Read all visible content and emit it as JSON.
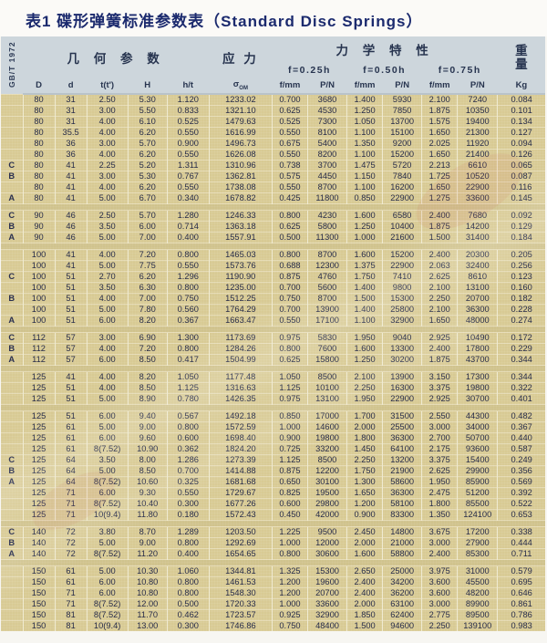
{
  "title": "表1 碟形弹簧标准参数表（Standard Disc Springs）",
  "table": {
    "standard_label": "GB/T 1972",
    "header": {
      "geometry": "几 何 参 数",
      "stress": "应 力",
      "mechanics": "力 学 特 性",
      "weight_char1": "重",
      "weight_char2": "量",
      "weight_unit": "Kg",
      "deflections": [
        "f=0.25h",
        "f=0.50h",
        "f=0.75h"
      ],
      "columns_geo": [
        "D",
        "d",
        "t(t')",
        "H",
        "h/t"
      ],
      "sigma_base": "σ",
      "sigma_sub": "OM",
      "columns_mech": [
        "f/mm",
        "P/N",
        "f/mm",
        "P/N",
        "f/mm",
        "P/N"
      ]
    },
    "groups": [
      [
        [
          "",
          "80",
          "31",
          "2.50",
          "5.30",
          "1.120",
          "1233.02",
          "0.700",
          "3680",
          "1.400",
          "5930",
          "2.100",
          "7240",
          "0.084"
        ],
        [
          "",
          "80",
          "31",
          "3.00",
          "5.50",
          "0.833",
          "1321.10",
          "0.625",
          "4530",
          "1.250",
          "7850",
          "1.875",
          "10350",
          "0.101"
        ],
        [
          "",
          "80",
          "31",
          "4.00",
          "6.10",
          "0.525",
          "1479.63",
          "0.525",
          "7300",
          "1.050",
          "13700",
          "1.575",
          "19400",
          "0.134"
        ],
        [
          "",
          "80",
          "35.5",
          "4.00",
          "6.20",
          "0.550",
          "1616.99",
          "0.550",
          "8100",
          "1.100",
          "15100",
          "1.650",
          "21300",
          "0.127"
        ],
        [
          "",
          "80",
          "36",
          "3.00",
          "5.70",
          "0.900",
          "1496.73",
          "0.675",
          "5400",
          "1.350",
          "9200",
          "2.025",
          "11920",
          "0.094"
        ],
        [
          "",
          "80",
          "36",
          "4.00",
          "6.20",
          "0.550",
          "1626.08",
          "0.550",
          "8200",
          "1.100",
          "15200",
          "1.650",
          "21400",
          "0.126"
        ],
        [
          "C",
          "80",
          "41",
          "2.25",
          "5.20",
          "1.311",
          "1310.96",
          "0.738",
          "3700",
          "1.475",
          "5720",
          "2.213",
          "6610",
          "0.065"
        ],
        [
          "B",
          "80",
          "41",
          "3.00",
          "5.30",
          "0.767",
          "1362.81",
          "0.575",
          "4450",
          "1.150",
          "7840",
          "1.725",
          "10520",
          "0.087"
        ],
        [
          "",
          "80",
          "41",
          "4.00",
          "6.20",
          "0.550",
          "1738.08",
          "0.550",
          "8700",
          "1.100",
          "16200",
          "1.650",
          "22900",
          "0.116"
        ],
        [
          "A",
          "80",
          "41",
          "5.00",
          "6.70",
          "0.340",
          "1678.82",
          "0.425",
          "11800",
          "0.850",
          "22900",
          "1.275",
          "33600",
          "0.145"
        ]
      ],
      [
        [
          "C",
          "90",
          "46",
          "2.50",
          "5.70",
          "1.280",
          "1246.33",
          "0.800",
          "4230",
          "1.600",
          "6580",
          "2.400",
          "7680",
          "0.092"
        ],
        [
          "B",
          "90",
          "46",
          "3.50",
          "6.00",
          "0.714",
          "1363.18",
          "0.625",
          "5800",
          "1.250",
          "10400",
          "1.875",
          "14200",
          "0.129"
        ],
        [
          "A",
          "90",
          "46",
          "5.00",
          "7.00",
          "0.400",
          "1557.91",
          "0.500",
          "11300",
          "1.000",
          "21600",
          "1.500",
          "31400",
          "0.184"
        ]
      ],
      [
        [
          "",
          "100",
          "41",
          "4.00",
          "7.20",
          "0.800",
          "1465.03",
          "0.800",
          "8700",
          "1.600",
          "15200",
          "2.400",
          "20300",
          "0.205"
        ],
        [
          "",
          "100",
          "41",
          "5.00",
          "7.75",
          "0.550",
          "1573.76",
          "0.688",
          "12300",
          "1.375",
          "22900",
          "2.063",
          "32400",
          "0.256"
        ],
        [
          "C",
          "100",
          "51",
          "2.70",
          "6.20",
          "1.296",
          "1190.90",
          "0.875",
          "4760",
          "1.750",
          "7410",
          "2.625",
          "8610",
          "0.123"
        ],
        [
          "",
          "100",
          "51",
          "3.50",
          "6.30",
          "0.800",
          "1235.00",
          "0.700",
          "5600",
          "1.400",
          "9800",
          "2.100",
          "13100",
          "0.160"
        ],
        [
          "B",
          "100",
          "51",
          "4.00",
          "7.00",
          "0.750",
          "1512.25",
          "0.750",
          "8700",
          "1.500",
          "15300",
          "2.250",
          "20700",
          "0.182"
        ],
        [
          "",
          "100",
          "51",
          "5.00",
          "7.80",
          "0.560",
          "1764.29",
          "0.700",
          "13900",
          "1.400",
          "25800",
          "2.100",
          "36300",
          "0.228"
        ],
        [
          "A",
          "100",
          "51",
          "6.00",
          "8.20",
          "0.367",
          "1663.47",
          "0.550",
          "17100",
          "1.100",
          "32900",
          "1.650",
          "48000",
          "0.274"
        ]
      ],
      [
        [
          "C",
          "112",
          "57",
          "3.00",
          "6.90",
          "1.300",
          "1173.69",
          "0.975",
          "5830",
          "1.950",
          "9040",
          "2.925",
          "10490",
          "0.172"
        ],
        [
          "B",
          "112",
          "57",
          "4.00",
          "7.20",
          "0.800",
          "1284.26",
          "0.800",
          "7600",
          "1.600",
          "13300",
          "2.400",
          "17800",
          "0.229"
        ],
        [
          "A",
          "112",
          "57",
          "6.00",
          "8.50",
          "0.417",
          "1504.99",
          "0.625",
          "15800",
          "1.250",
          "30200",
          "1.875",
          "43700",
          "0.344"
        ]
      ],
      [
        [
          "",
          "125",
          "41",
          "4.00",
          "8.20",
          "1.050",
          "1177.48",
          "1.050",
          "8500",
          "2.100",
          "13900",
          "3.150",
          "17300",
          "0.344"
        ],
        [
          "",
          "125",
          "51",
          "4.00",
          "8.50",
          "1.125",
          "1316.63",
          "1.125",
          "10100",
          "2.250",
          "16300",
          "3.375",
          "19800",
          "0.322"
        ],
        [
          "",
          "125",
          "51",
          "5.00",
          "8.90",
          "0.780",
          "1426.35",
          "0.975",
          "13100",
          "1.950",
          "22900",
          "2.925",
          "30700",
          "0.401"
        ]
      ],
      [
        [
          "",
          "125",
          "51",
          "6.00",
          "9.40",
          "0.567",
          "1492.18",
          "0.850",
          "17000",
          "1.700",
          "31500",
          "2.550",
          "44300",
          "0.482"
        ],
        [
          "",
          "125",
          "61",
          "5.00",
          "9.00",
          "0.800",
          "1572.59",
          "1.000",
          "14600",
          "2.000",
          "25500",
          "3.000",
          "34000",
          "0.367"
        ],
        [
          "",
          "125",
          "61",
          "6.00",
          "9.60",
          "0.600",
          "1698.40",
          "0.900",
          "19800",
          "1.800",
          "36300",
          "2.700",
          "50700",
          "0.440"
        ],
        [
          "",
          "125",
          "61",
          "8(7.52)",
          "10.90",
          "0.362",
          "1824.20",
          "0.725",
          "33200",
          "1.450",
          "64100",
          "2.175",
          "93600",
          "0.587"
        ],
        [
          "C",
          "125",
          "64",
          "3.50",
          "8.00",
          "1.286",
          "1273.39",
          "1.125",
          "8500",
          "2.250",
          "13200",
          "3.375",
          "15400",
          "0.249"
        ],
        [
          "B",
          "125",
          "64",
          "5.00",
          "8.50",
          "0.700",
          "1414.88",
          "0.875",
          "12200",
          "1.750",
          "21900",
          "2.625",
          "29900",
          "0.356"
        ],
        [
          "A",
          "125",
          "64",
          "8(7.52)",
          "10.60",
          "0.325",
          "1681.68",
          "0.650",
          "30100",
          "1.300",
          "58600",
          "1.950",
          "85900",
          "0.569"
        ],
        [
          "",
          "125",
          "71",
          "6.00",
          "9.30",
          "0.550",
          "1729.67",
          "0.825",
          "19500",
          "1.650",
          "36300",
          "2.475",
          "51200",
          "0.392"
        ],
        [
          "",
          "125",
          "71",
          "8(7.52)",
          "10.40",
          "0.300",
          "1677.26",
          "0.600",
          "29800",
          "1.200",
          "58100",
          "1.800",
          "85500",
          "0.522"
        ],
        [
          "",
          "125",
          "71",
          "10(9.4)",
          "11.80",
          "0.180",
          "1572.43",
          "0.450",
          "42000",
          "0.900",
          "83300",
          "1.350",
          "124100",
          "0.653"
        ]
      ],
      [
        [
          "C",
          "140",
          "72",
          "3.80",
          "8.70",
          "1.289",
          "1203.50",
          "1.225",
          "9500",
          "2.450",
          "14800",
          "3.675",
          "17200",
          "0.338"
        ],
        [
          "B",
          "140",
          "72",
          "5.00",
          "9.00",
          "0.800",
          "1292.69",
          "1.000",
          "12000",
          "2.000",
          "21000",
          "3.000",
          "27900",
          "0.444"
        ],
        [
          "A",
          "140",
          "72",
          "8(7.52)",
          "11.20",
          "0.400",
          "1654.65",
          "0.800",
          "30600",
          "1.600",
          "58800",
          "2.400",
          "85300",
          "0.711"
        ]
      ],
      [
        [
          "",
          "150",
          "61",
          "5.00",
          "10.30",
          "1.060",
          "1344.81",
          "1.325",
          "15300",
          "2.650",
          "25000",
          "3.975",
          "31000",
          "0.579"
        ],
        [
          "",
          "150",
          "61",
          "6.00",
          "10.80",
          "0.800",
          "1461.53",
          "1.200",
          "19600",
          "2.400",
          "34200",
          "3.600",
          "45500",
          "0.695"
        ],
        [
          "",
          "150",
          "71",
          "6.00",
          "10.80",
          "0.800",
          "1548.30",
          "1.200",
          "20700",
          "2.400",
          "36200",
          "3.600",
          "48200",
          "0.646"
        ],
        [
          "",
          "150",
          "71",
          "8(7.52)",
          "12.00",
          "0.500",
          "1720.33",
          "1.000",
          "33600",
          "2.000",
          "63100",
          "3.000",
          "89900",
          "0.861"
        ],
        [
          "",
          "150",
          "81",
          "8(7.52)",
          "11.70",
          "0.462",
          "1723.57",
          "0.925",
          "32900",
          "1.850",
          "62400",
          "2.775",
          "89500",
          "0.786"
        ],
        [
          "",
          "150",
          "81",
          "10(9.4)",
          "13.00",
          "0.300",
          "1746.86",
          "0.750",
          "48400",
          "1.500",
          "94600",
          "2.250",
          "139100",
          "0.983"
        ]
      ]
    ]
  }
}
